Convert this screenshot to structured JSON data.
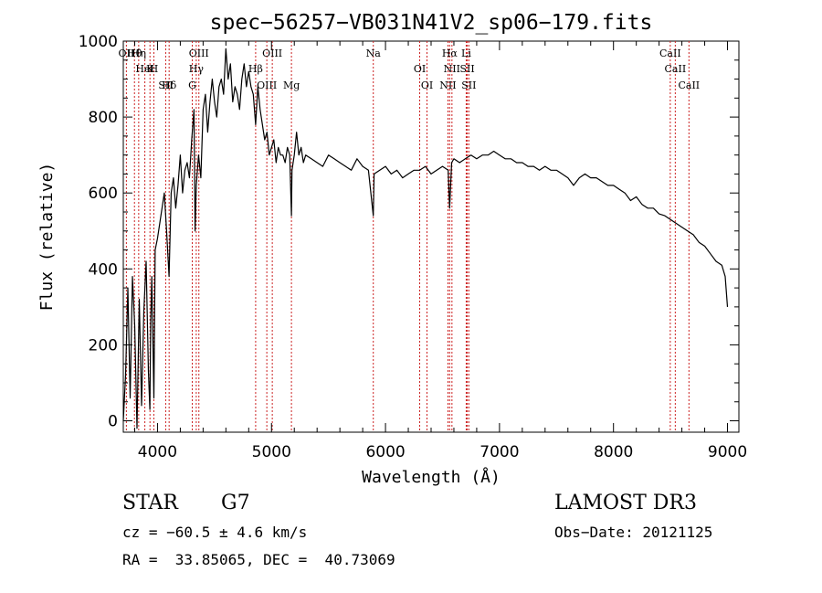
{
  "chart_data": {
    "type": "line",
    "title": "spec−56257−VB031N41V2_sp06−179.fits",
    "xlabel": "Wavelength (Å)",
    "ylabel": "Flux (relative)",
    "xlim": [
      3700,
      9100
    ],
    "ylim": [
      -30,
      1000
    ],
    "x_ticks": [
      4000,
      5000,
      6000,
      7000,
      8000,
      9000
    ],
    "y_ticks": [
      0,
      200,
      400,
      600,
      800,
      1000
    ],
    "grid": false,
    "series": [
      {
        "x": [
          3700,
          3720,
          3740,
          3760,
          3780,
          3800,
          3820,
          3840,
          3860,
          3880,
          3900,
          3920,
          3933,
          3940,
          3950,
          3968,
          3980,
          4000,
          4020,
          4040,
          4060,
          4080,
          4101,
          4120,
          4140,
          4160,
          4180,
          4200,
          4220,
          4240,
          4260,
          4280,
          4300,
          4320,
          4330,
          4340,
          4360,
          4380,
          4400,
          4420,
          4440,
          4460,
          4480,
          4500,
          4520,
          4540,
          4560,
          4580,
          4600,
          4620,
          4640,
          4660,
          4680,
          4700,
          4720,
          4740,
          4760,
          4780,
          4800,
          4820,
          4840,
          4861,
          4880,
          4900,
          4920,
          4940,
          4960,
          4980,
          5000,
          5020,
          5040,
          5060,
          5080,
          5100,
          5120,
          5140,
          5160,
          5175,
          5180,
          5200,
          5220,
          5240,
          5260,
          5280,
          5300,
          5350,
          5400,
          5450,
          5500,
          5550,
          5600,
          5650,
          5700,
          5750,
          5800,
          5850,
          5893,
          5900,
          5950,
          6000,
          6050,
          6100,
          6150,
          6200,
          6250,
          6300,
          6350,
          6400,
          6450,
          6500,
          6550,
          6563,
          6580,
          6600,
          6650,
          6700,
          6750,
          6800,
          6850,
          6900,
          6950,
          7000,
          7050,
          7100,
          7150,
          7200,
          7250,
          7300,
          7350,
          7400,
          7450,
          7500,
          7550,
          7600,
          7650,
          7700,
          7750,
          7800,
          7850,
          7900,
          7950,
          8000,
          8050,
          8100,
          8150,
          8200,
          8250,
          8300,
          8350,
          8400,
          8450,
          8500,
          8550,
          8600,
          8650,
          8700,
          8750,
          8800,
          8850,
          8900,
          8950,
          8980,
          9000
        ],
        "y": [
          0,
          120,
          350,
          60,
          380,
          250,
          -20,
          320,
          40,
          290,
          420,
          130,
          30,
          260,
          380,
          60,
          450,
          480,
          520,
          560,
          600,
          500,
          380,
          600,
          640,
          560,
          620,
          700,
          600,
          660,
          680,
          640,
          740,
          820,
          500,
          620,
          700,
          640,
          820,
          860,
          760,
          840,
          900,
          840,
          800,
          880,
          900,
          860,
          980,
          900,
          940,
          840,
          880,
          860,
          820,
          900,
          940,
          880,
          920,
          880,
          860,
          780,
          880,
          820,
          780,
          740,
          760,
          700,
          720,
          740,
          680,
          720,
          700,
          700,
          680,
          720,
          700,
          540,
          660,
          700,
          760,
          700,
          720,
          680,
          700,
          690,
          680,
          670,
          700,
          690,
          680,
          670,
          660,
          690,
          670,
          660,
          540,
          650,
          660,
          670,
          650,
          660,
          640,
          650,
          660,
          660,
          670,
          650,
          660,
          670,
          660,
          560,
          680,
          690,
          680,
          690,
          700,
          690,
          700,
          700,
          710,
          700,
          690,
          690,
          680,
          680,
          670,
          670,
          660,
          670,
          660,
          660,
          650,
          640,
          620,
          640,
          650,
          640,
          640,
          630,
          620,
          620,
          610,
          600,
          580,
          590,
          570,
          560,
          560,
          545,
          540,
          530,
          520,
          510,
          500,
          490,
          470,
          460,
          440,
          420,
          410,
          380,
          300
        ]
      }
    ],
    "lines": {
      "labels": [
        "Hθ",
        "K",
        "Hδ",
        "OII",
        "HeI",
        "SII",
        "OIII",
        "Hγ",
        "G",
        "Hη",
        "H",
        "OIII",
        "OIII",
        "Hβ",
        "Mg",
        "Na",
        "OI",
        "OI",
        "Hα",
        "SII",
        "NII",
        "Li",
        "NII",
        "SII",
        "CaII",
        "CaII",
        "CaII"
      ],
      "wavelengths": [
        3798,
        3934,
        4102,
        3727,
        3889,
        4072,
        4363,
        4340,
        4305,
        3835,
        3968,
        4959,
        5007,
        4861,
        5175,
        5893,
        6300,
        6364,
        6563,
        6717,
        6548,
        6708,
        6583,
        6731,
        8498,
        8542,
        8662
      ]
    }
  },
  "info": {
    "object_type": "STAR",
    "subclass": "G7",
    "survey": "LAMOST DR3",
    "velocity": "cz = −60.5 ± 4.6 km/s",
    "obs_date": "Obs−Date: 20121125",
    "coords": "RA =  33.85065, DEC =  40.73069"
  }
}
